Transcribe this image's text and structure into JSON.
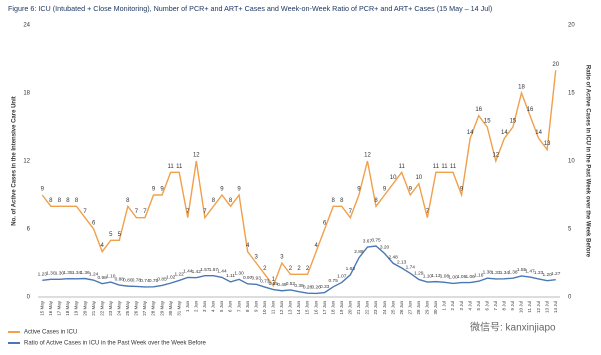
{
  "chart_data": {
    "type": "line",
    "title": "Figure 6: ICU (Intubated + Close Monitoring), Number of PCR+ and ART+ Cases and Week-on-Week Ratio of PCR+ and ART+ Cases (15 May – 14 Jul)",
    "y_label": "No. of Active Cases in the Intensive Care Unit",
    "y2_label": "Ratio of Active Cases in ICU in the Past Week over the Week Before",
    "watermark": "微信号: kanxinjiapo",
    "categories": [
      "15 May",
      "16 May",
      "17 May",
      "18 May",
      "19 May",
      "20 May",
      "21 May",
      "22 May",
      "23 May",
      "24 May",
      "25 May",
      "26 May",
      "27 May",
      "28 May",
      "29 May",
      "30 May",
      "31 May",
      "1 Jun",
      "2 Jun",
      "3 Jun",
      "4 Jun",
      "5 Jun",
      "6 Jun",
      "7 Jun",
      "8 Jun",
      "9 Jun",
      "10 Jun",
      "11 Jun",
      "12 Jun",
      "13 Jun",
      "14 Jun",
      "15 Jun",
      "16 Jun",
      "17 Jun",
      "18 Jun",
      "19 Jun",
      "20 Jun",
      "21 Jun",
      "22 Jun",
      "23 Jun",
      "24 Jun",
      "25 Jun",
      "26 Jun",
      "27 Jun",
      "28 Jun",
      "29 Jun",
      "30 Jun",
      "1 Jul",
      "2 Jul",
      "3 Jul",
      "4 Jul",
      "5 Jul",
      "6 Jul",
      "7 Jul",
      "8 Jul",
      "9 Jul",
      "10 Jul",
      "11 Jul",
      "12 Jul",
      "13 Jul",
      "14 Jul"
    ],
    "series": [
      {
        "name": "Active Cases in ICU",
        "color": "#f0a04b",
        "axis": "y",
        "values": [
          9,
          8,
          8,
          8,
          8,
          7,
          6,
          4,
          5,
          5,
          8,
          7,
          7,
          9,
          9,
          11,
          11,
          7,
          12,
          7,
          8,
          9,
          8,
          9,
          4,
          3,
          2,
          1,
          3,
          2,
          2,
          2,
          4,
          6,
          8,
          8,
          7,
          9,
          12,
          8,
          9,
          10,
          11,
          9,
          10,
          7,
          11,
          11,
          11,
          9,
          14,
          16,
          15,
          12,
          14,
          15,
          18,
          16,
          14,
          13,
          20
        ]
      },
      {
        "name": "Ratio of Active Cases in ICU in the Past Week over the Week Before",
        "color": "#4a78b5",
        "axis": "y2",
        "values": [
          1.23,
          1.3,
          1.3,
          1.35,
          1.34,
          1.36,
          1.24,
          0.98,
          1.1,
          0.88,
          0.8,
          0.78,
          0.74,
          0.75,
          0.85,
          1.02,
          1.22,
          1.44,
          1.42,
          1.57,
          1.57,
          1.44,
          1.11,
          1.3,
          0.97,
          0.93,
          0.73,
          0.55,
          0.46,
          0.52,
          0.39,
          0.28,
          0.26,
          0.33,
          0.75,
          1.07,
          1.63,
          2.88,
          3.67,
          3.75,
          3.2,
          2.48,
          2.13,
          1.74,
          1.29,
          1.1,
          1.13,
          1.08,
          1.0,
          1.06,
          1.06,
          1.16,
          1.38,
          1.33,
          1.34,
          1.38,
          1.55,
          1.47,
          1.33,
          1.2,
          1.27
        ],
        "value_labels": [
          "1.23",
          "1.30",
          "1.30",
          "1.35",
          "1.34",
          "1.36",
          "1.24",
          "0.98",
          "1.10",
          "0.88",
          "0.80",
          "0.78",
          "0.74",
          "0.75",
          "0.85",
          "1.02",
          "1.22",
          "1.44",
          "1.42",
          "1.57",
          "1.57",
          "1.44",
          "1.11",
          "1.30",
          "0.97",
          "0.93",
          "0.73",
          "0.55",
          "0.46",
          "0.52",
          "0.39",
          "0.28",
          "0.26",
          "0.33",
          "0.75",
          "1.07",
          "1.63",
          "2.88",
          "3.67",
          "3.75",
          "3.20",
          "2.48",
          "2.13",
          "1.74",
          "1.29",
          "1.10",
          "1.13",
          "1.08",
          "1.00",
          "1.06",
          "1.06",
          "1.16",
          "1.38",
          "1.33",
          "1.34",
          "1.38",
          "1.55",
          "1.47",
          "1.33",
          "1.20",
          "1.27"
        ]
      }
    ],
    "ylim": [
      0,
      24
    ],
    "yticks": [
      0,
      6,
      12,
      18,
      24
    ],
    "y2lim": [
      0,
      20
    ],
    "y2ticks": [
      0,
      5,
      10,
      15,
      20
    ],
    "grid": false
  }
}
